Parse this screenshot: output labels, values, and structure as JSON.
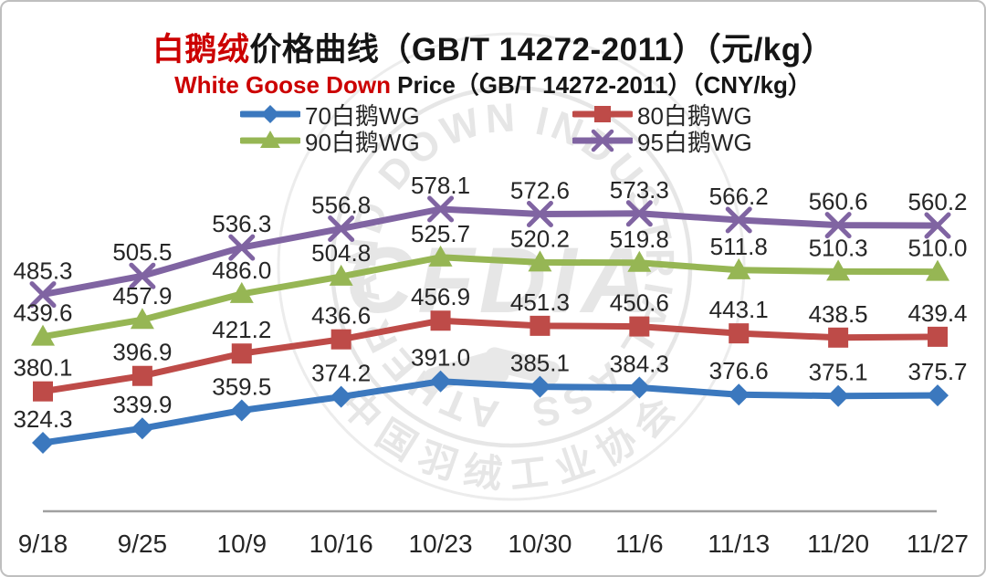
{
  "title": {
    "line1_highlight": "白鹅绒",
    "line1_rest": "价格曲线（GB/T 14272-2011）（元/kg）",
    "line2_highlight": "White Goose Down",
    "line2_rest": " Price（GB/T 14272-2011）（CNY/kg）"
  },
  "colors": {
    "accent_red": "#cc0000",
    "text": "#262626",
    "axis_line": "#a0a0a0",
    "watermark_gray": "#d2d2d2",
    "series_blue": "#3b78be",
    "series_red": "#be4b48",
    "series_green": "#96b654",
    "series_purple": "#8064a2"
  },
  "watermark": {
    "ring_text_en": "CHINA FEATHER AND DOWN INDUSTRIAL ASSOCIATION",
    "ring_text_cn": "中国羽绒工业协会",
    "center_text": "CFDIA",
    "emblem": "handshake-icon"
  },
  "chart_data": {
    "type": "line",
    "title": "白鹅绒价格曲线（GB/T 14272-2011）（元/kg）",
    "subtitle": "White Goose Down Price（GB/T 14272-2011）（CNY/kg）",
    "xlabel": "",
    "ylabel": "",
    "unit": "元/kg (CNY/kg)",
    "grid": false,
    "y_axis_visible": false,
    "data_labels": true,
    "legend_position": "top",
    "ylim": [
      300,
      600
    ],
    "categories": [
      "9/18",
      "9/25",
      "10/9",
      "10/16",
      "10/23",
      "10/30",
      "11/6",
      "11/13",
      "11/20",
      "11/27"
    ],
    "series": [
      {
        "name": "70白鹅WG",
        "color": "#3b78be",
        "marker": "diamond",
        "values": [
          324.3,
          339.9,
          359.5,
          374.2,
          391.0,
          385.1,
          384.3,
          376.6,
          375.1,
          375.7
        ]
      },
      {
        "name": "80白鹅WG",
        "color": "#be4b48",
        "marker": "square",
        "values": [
          380.1,
          396.9,
          421.2,
          436.6,
          456.9,
          451.3,
          450.6,
          443.1,
          438.5,
          439.4
        ]
      },
      {
        "name": "90白鹅WG",
        "color": "#96b654",
        "marker": "triangle",
        "values": [
          439.6,
          457.9,
          486.0,
          504.8,
          525.7,
          520.2,
          519.8,
          511.8,
          510.3,
          510.0
        ]
      },
      {
        "name": "95白鹅WG",
        "color": "#8064a2",
        "marker": "x",
        "values": [
          485.3,
          505.5,
          536.3,
          556.8,
          578.1,
          572.6,
          573.3,
          566.2,
          560.6,
          560.2
        ]
      }
    ]
  },
  "legend": {
    "items": [
      {
        "label": "70白鹅WG",
        "series_index": 0
      },
      {
        "label": "80白鹅WG",
        "series_index": 1
      },
      {
        "label": "90白鹅WG",
        "series_index": 2
      },
      {
        "label": "95白鹅WG",
        "series_index": 3
      }
    ]
  }
}
